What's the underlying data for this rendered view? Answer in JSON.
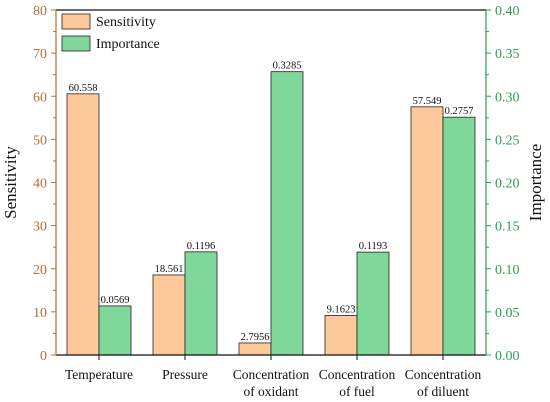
{
  "chart_data": {
    "type": "bar",
    "categories": [
      [
        "Temperature"
      ],
      [
        "Pressure"
      ],
      [
        "Concentration",
        "of oxidant"
      ],
      [
        "Concentration",
        "of fuel"
      ],
      [
        "Concentration",
        "of diluent"
      ]
    ],
    "series": [
      {
        "name": "Sensitivity",
        "axis": "left",
        "color": "#FDC99A",
        "values": [
          60.558,
          18.561,
          2.7956,
          9.1623,
          57.549
        ],
        "labels": [
          "60.558",
          "18.561",
          "2.7956",
          "9.1623",
          "57.549"
        ]
      },
      {
        "name": "Importance",
        "axis": "right",
        "color": "#7FD89A",
        "values": [
          0.0569,
          0.1196,
          0.3285,
          0.1193,
          0.2757
        ],
        "labels": [
          "0.0569",
          "0.1196",
          "0.3285",
          "0.1193",
          "0.2757"
        ]
      }
    ],
    "y_left": {
      "label": "Sensitivity",
      "ylim": [
        0,
        80
      ],
      "ticks": [
        "0",
        "10",
        "20",
        "30",
        "40",
        "50",
        "60",
        "70",
        "80"
      ],
      "color": "#B5703A"
    },
    "y_right": {
      "label": "Importance",
      "ylim": [
        0,
        0.4
      ],
      "ticks": [
        "0.00",
        "0.05",
        "0.10",
        "0.15",
        "0.20",
        "0.25",
        "0.30",
        "0.35",
        "0.40"
      ],
      "color": "#2E9E4F"
    },
    "legend": {
      "position": "top-left"
    },
    "grid": false
  }
}
